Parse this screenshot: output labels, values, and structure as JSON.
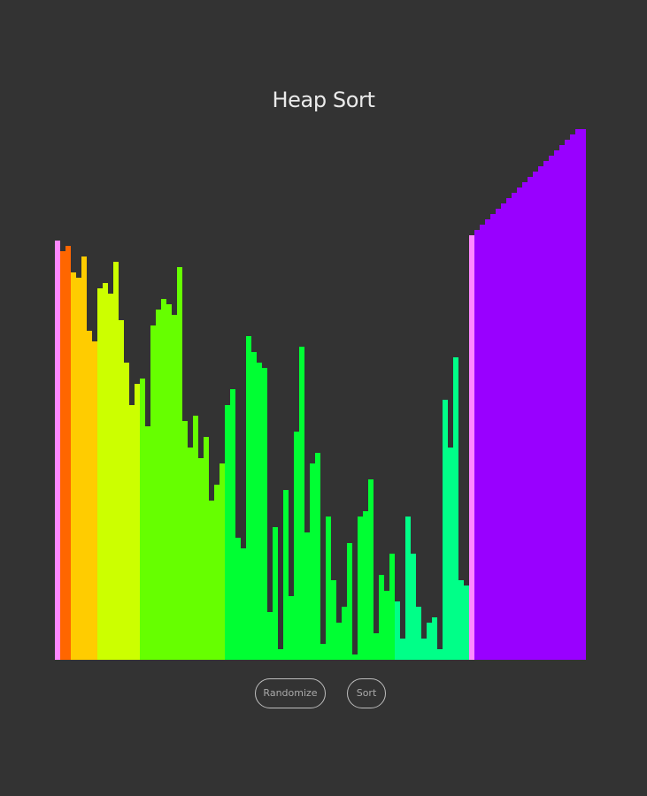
{
  "header": {
    "title": "Heap Sort"
  },
  "controls": {
    "randomize_label": "Randomize",
    "sort_label": "Sort"
  },
  "colors": {
    "background": "#333333",
    "highlight": "#ff88ff"
  },
  "bars": {
    "max_value": 100,
    "highlighted_indices": [
      0,
      78
    ],
    "values": [
      79,
      77,
      78,
      73,
      72,
      76,
      62,
      60,
      70,
      71,
      69,
      75,
      64,
      56,
      48,
      52,
      53,
      44,
      63,
      66,
      68,
      67,
      65,
      74,
      45,
      40,
      46,
      38,
      42,
      30,
      33,
      37,
      48,
      51,
      23,
      21,
      61,
      58,
      56,
      55,
      9,
      25,
      2,
      32,
      12,
      43,
      59,
      24,
      37,
      39,
      3,
      27,
      15,
      7,
      10,
      22,
      1,
      27,
      28,
      34,
      5,
      16,
      13,
      20,
      11,
      4,
      27,
      20,
      10,
      4,
      7,
      8,
      2,
      49,
      40,
      57,
      15,
      14,
      80,
      81,
      82,
      83,
      84,
      85,
      86,
      87,
      88,
      89,
      90,
      91,
      92,
      93,
      94,
      95,
      96,
      97,
      98,
      99,
      100,
      101
    ],
    "colors": [
      "#ff88ff",
      "#ff6600",
      "#ff6600",
      "#ffcc00",
      "#ffcc00",
      "#ffcc00",
      "#ffcc00",
      "#ffcc00",
      "#ccff00",
      "#ccff00",
      "#ccff00",
      "#ccff00",
      "#ccff00",
      "#ccff00",
      "#ccff00",
      "#ccff00",
      "#66ff00",
      "#66ff00",
      "#66ff00",
      "#66ff00",
      "#66ff00",
      "#66ff00",
      "#66ff00",
      "#66ff00",
      "#66ff00",
      "#66ff00",
      "#66ff00",
      "#66ff00",
      "#66ff00",
      "#66ff00",
      "#66ff00",
      "#66ff00",
      "#00ff33",
      "#00ff33",
      "#00ff33",
      "#00ff33",
      "#00ff33",
      "#00ff33",
      "#00ff33",
      "#00ff33",
      "#00ff33",
      "#00ff33",
      "#00ff33",
      "#00ff33",
      "#00ff33",
      "#00ff33",
      "#00ff33",
      "#00ff33",
      "#00ff33",
      "#00ff33",
      "#00ff33",
      "#00ff33",
      "#00ff33",
      "#00ff33",
      "#00ff33",
      "#00ff33",
      "#00ff33",
      "#00ff33",
      "#00ff33",
      "#00ff33",
      "#00ff33",
      "#00ff33",
      "#00ff33",
      "#00ff33",
      "#00ff88",
      "#00ff88",
      "#00ff88",
      "#00ff88",
      "#00ff88",
      "#00ff88",
      "#00ff88",
      "#00ff88",
      "#00ff88",
      "#00ff88",
      "#00ff88",
      "#00ff88",
      "#00ff88",
      "#00ff88",
      "#ff88ff",
      "#9900ff",
      "#9900ff",
      "#9900ff",
      "#9900ff",
      "#9900ff",
      "#9900ff",
      "#9900ff",
      "#9900ff",
      "#9900ff",
      "#9900ff",
      "#9900ff",
      "#9900ff",
      "#9900ff",
      "#9900ff",
      "#9900ff",
      "#9900ff",
      "#9900ff",
      "#9900ff",
      "#9900ff",
      "#9900ff",
      "#9900ff"
    ]
  }
}
